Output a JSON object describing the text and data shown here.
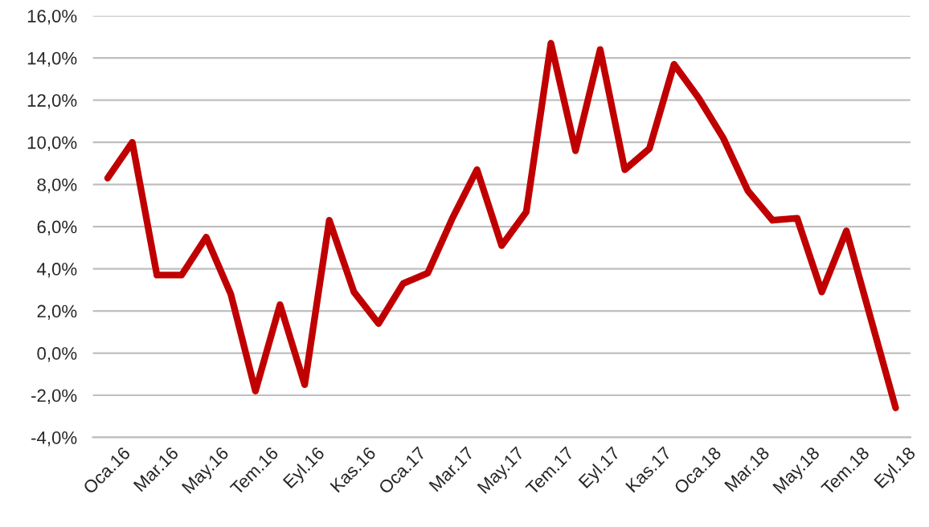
{
  "chart_data": {
    "type": "line",
    "categories": [
      "Oca.16",
      null,
      "Mar.16",
      null,
      "May.16",
      null,
      "Tem.16",
      null,
      "Eyl.16",
      null,
      "Kas.16",
      null,
      "Oca.17",
      null,
      "Mar.17",
      null,
      "May.17",
      null,
      "Tem.17",
      null,
      "Eyl.17",
      null,
      "Kas.17",
      null,
      "Oca.18",
      null,
      "Mar.18",
      null,
      "May.18",
      null,
      "Tem.18",
      null,
      "Eyl.18"
    ],
    "series": [
      {
        "color": "#c00000",
        "values": [
          8.3,
          10.0,
          3.7,
          3.7,
          5.5,
          2.8,
          -1.8,
          2.3,
          -1.5,
          6.3,
          2.9,
          1.4,
          3.3,
          3.8,
          6.4,
          8.7,
          5.1,
          6.7,
          14.7,
          9.6,
          14.4,
          8.7,
          9.7,
          13.7,
          12.1,
          10.2,
          7.7,
          6.3,
          6.4,
          2.9,
          5.8,
          1.6,
          -2.6
        ]
      }
    ],
    "ylim": [
      -4,
      16
    ],
    "yticks": [
      {
        "value": -4,
        "label": "-4,0%"
      },
      {
        "value": -2,
        "label": "-2,0%"
      },
      {
        "value": 0,
        "label": "0,0%"
      },
      {
        "value": 2,
        "label": "2,0%"
      },
      {
        "value": 4,
        "label": "4,0%"
      },
      {
        "value": 6,
        "label": "6,0%"
      },
      {
        "value": 8,
        "label": "8,0%"
      },
      {
        "value": 10,
        "label": "10,0%"
      },
      {
        "value": 12,
        "label": "12,0%"
      },
      {
        "value": 14,
        "label": "14,0%"
      },
      {
        "value": 16,
        "label": "16,0%"
      }
    ],
    "grid": "y",
    "marker": "none",
    "line_style": "solid"
  }
}
